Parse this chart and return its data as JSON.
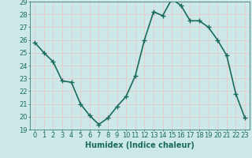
{
  "x": [
    0,
    1,
    2,
    3,
    4,
    5,
    6,
    7,
    8,
    9,
    10,
    11,
    12,
    13,
    14,
    15,
    16,
    17,
    18,
    19,
    20,
    21,
    22,
    23
  ],
  "y": [
    25.8,
    25.0,
    24.3,
    22.8,
    22.7,
    21.0,
    20.1,
    19.4,
    19.9,
    20.8,
    21.6,
    23.2,
    26.0,
    28.2,
    27.9,
    29.2,
    28.7,
    27.5,
    27.5,
    27.0,
    26.0,
    24.8,
    21.8,
    19.9
  ],
  "line_color": "#1a6b5a",
  "marker": "+",
  "marker_size": 5,
  "linewidth": 1.2,
  "xlabel": "Humidex (Indice chaleur)",
  "ylabel": "",
  "ylim": [
    19,
    29
  ],
  "xlim": [
    -0.5,
    23.5
  ],
  "yticks": [
    19,
    20,
    21,
    22,
    23,
    24,
    25,
    26,
    27,
    28,
    29
  ],
  "xticks": [
    0,
    1,
    2,
    3,
    4,
    5,
    6,
    7,
    8,
    9,
    10,
    11,
    12,
    13,
    14,
    15,
    16,
    17,
    18,
    19,
    20,
    21,
    22,
    23
  ],
  "bg_color": "#cce8e8",
  "grid_color": "#e8c8c8",
  "tick_color": "#1a6b5a",
  "xlabel_fontsize": 7,
  "tick_fontsize": 6
}
